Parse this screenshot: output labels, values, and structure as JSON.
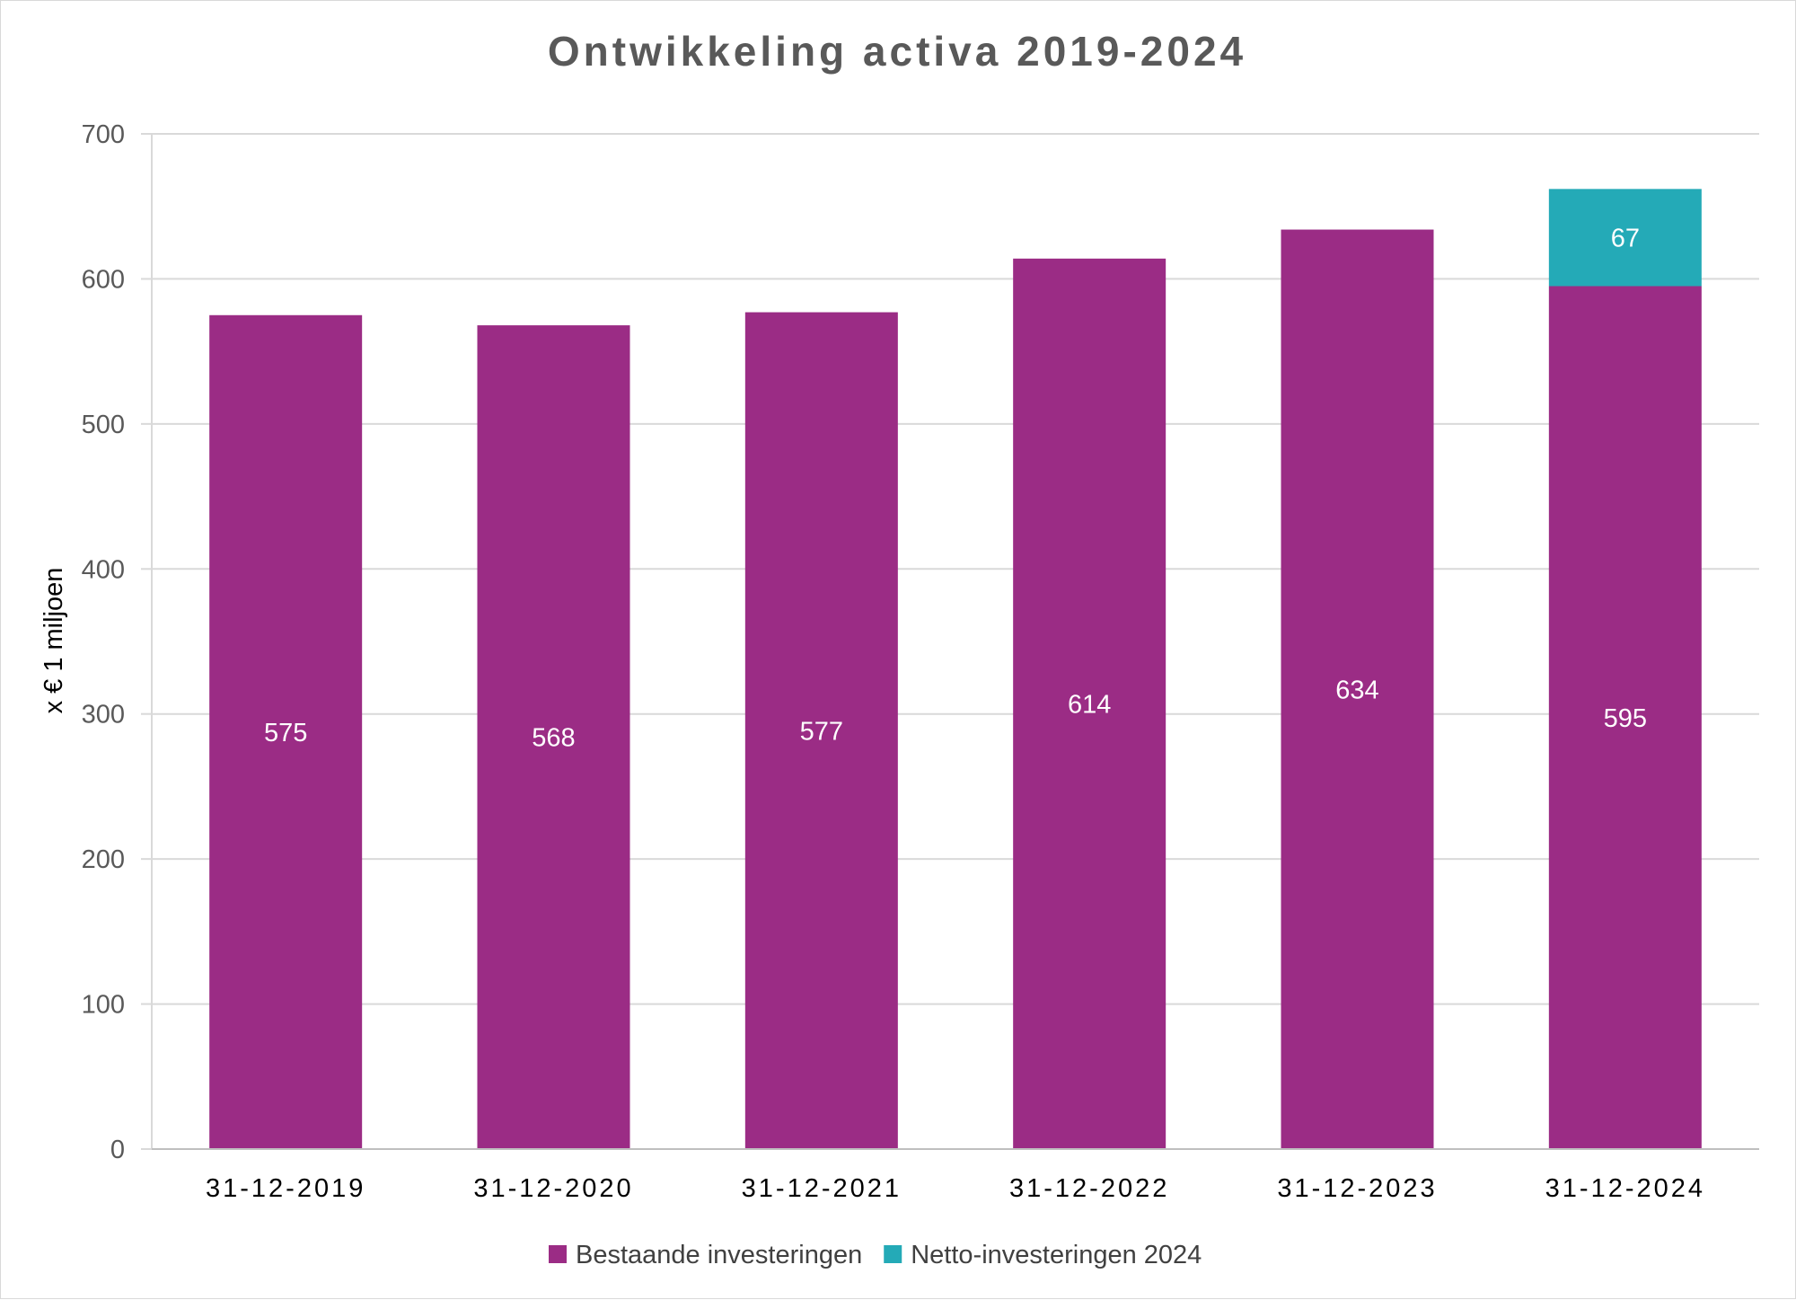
{
  "chart_data": {
    "type": "bar",
    "stacked": true,
    "title": "Ontwikkeling activa 2019-2024",
    "xlabel": "",
    "ylabel": "x € 1 miljoen",
    "ylim": [
      0,
      700
    ],
    "yticks": [
      0,
      100,
      200,
      300,
      400,
      500,
      600,
      700
    ],
    "grid": true,
    "legend_position": "bottom",
    "categories": [
      "31-12-2019",
      "31-12-2020",
      "31-12-2021",
      "31-12-2022",
      "31-12-2023",
      "31-12-2024"
    ],
    "series": [
      {
        "name": "Bestaande investeringen",
        "color": "#9b2c85",
        "values": [
          575,
          568,
          577,
          614,
          634,
          595
        ]
      },
      {
        "name": "Netto-investeringen 2024",
        "color": "#24aab7",
        "values": [
          0,
          0,
          0,
          0,
          0,
          67
        ]
      }
    ]
  },
  "colors": {
    "grid": "#d9d9d9",
    "axis": "#bfbfbf",
    "text": "#595959"
  }
}
